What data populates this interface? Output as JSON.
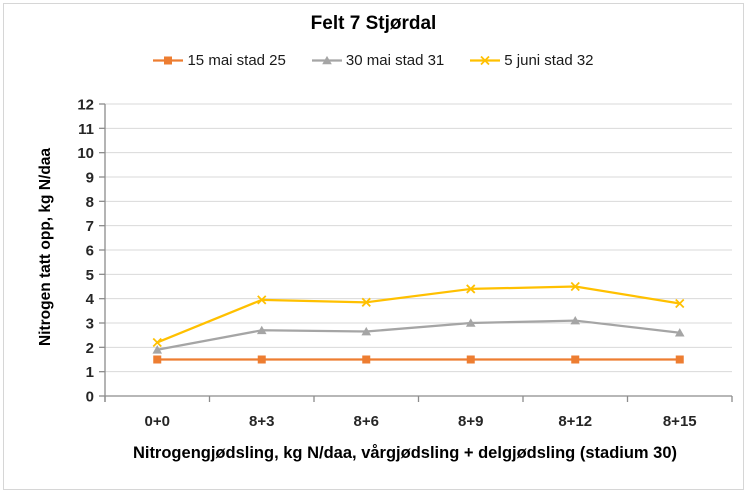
{
  "chart_data": {
    "type": "line",
    "title": "Felt 7 Stjørdal",
    "xlabel": "Nitrogengjødsling, kg N/daa, vårgjødsling + delgjødsling (stadium 30)",
    "ylabel": "Nitrogen tatt opp, kg N/daa",
    "categories": [
      "0+0",
      "8+3",
      "8+6",
      "8+9",
      "8+12",
      "8+15"
    ],
    "series": [
      {
        "name": "15 mai stad 25",
        "color": "#ED7D31",
        "marker": "square",
        "values": [
          1.5,
          1.5,
          1.5,
          1.5,
          1.5,
          1.5
        ]
      },
      {
        "name": "30 mai stad 31",
        "color": "#A5A5A5",
        "marker": "triangle",
        "values": [
          1.9,
          2.7,
          2.65,
          3.0,
          3.1,
          2.6
        ]
      },
      {
        "name": "5 juni stad 32",
        "color": "#FFC000",
        "marker": "x",
        "values": [
          2.2,
          3.95,
          3.85,
          4.4,
          4.5,
          3.8
        ]
      }
    ],
    "ylim": [
      0,
      12
    ],
    "ytick_step": 1,
    "grid": true,
    "legend_position": "top"
  },
  "style": {
    "grid_color": "#D9D9D9",
    "axis_color": "#8C8C8C",
    "tick_label_color": "#262626",
    "background": "#FFFFFF",
    "border_color": "#D6D6D6"
  }
}
